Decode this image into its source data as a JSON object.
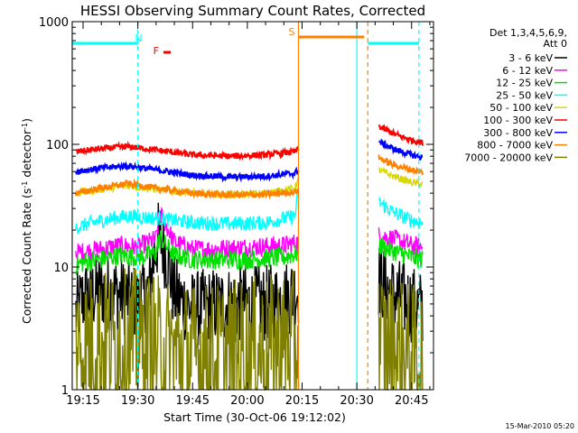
{
  "chart_data": {
    "type": "line",
    "title": "HESSI Observing Summary Count Rates, Corrected",
    "xlabel": "Start Time (30-Oct-06 19:12:02)",
    "ylabel_main": "Corrected Count Rate (s",
    "ylabel_sup1": "-1",
    "ylabel_mid": " detector",
    "ylabel_sup2": "-1",
    "ylabel_end": ")",
    "yscale": "log",
    "ylim": [
      1,
      1000
    ],
    "xlim": [
      "19:12:02",
      "20:51:00"
    ],
    "x_ticks": [
      "19:15",
      "19:30",
      "19:45",
      "20:00",
      "20:15",
      "20:30",
      "20:45"
    ],
    "y_ticks": [
      "1",
      "10",
      "100",
      "1000"
    ],
    "date_stamp": "15-Mar-2010 05:20",
    "legend": {
      "placement": "right",
      "header1": "Det 1,3,4,5,6,9,",
      "header2": "Att 0",
      "entries": [
        {
          "label": "3 - 6 keV",
          "color": "#000000"
        },
        {
          "label": "6 - 12 keV",
          "color": "#ff00ff"
        },
        {
          "label": "12 - 25 keV",
          "color": "#00e000"
        },
        {
          "label": "25 - 50 keV",
          "color": "#00ffff"
        },
        {
          "label": "50 - 100 keV",
          "color": "#d8d800"
        },
        {
          "label": "100 - 300 keV",
          "color": "#ff0000"
        },
        {
          "label": "300 - 800 keV",
          "color": "#0000ff"
        },
        {
          "label": "800 - 7000 keV",
          "color": "#ff8000"
        },
        {
          "label": "7000 - 20000 keV",
          "color": "#808000"
        }
      ]
    },
    "flags": [
      {
        "label": "N",
        "color": "#00ffff",
        "segments": [
          [
            "19:12",
            "19:30"
          ],
          [
            "20:33",
            "20:47"
          ]
        ]
      },
      {
        "label": "F",
        "color": "#ff0000",
        "segments": [
          [
            "19:37",
            "19:39"
          ]
        ]
      },
      {
        "label": "S",
        "color": "#ff8000",
        "segments": [
          [
            "20:14",
            "20:32"
          ]
        ]
      }
    ],
    "vlines": [
      {
        "time": "19:30",
        "color": "#00ffff",
        "style": "dashed"
      },
      {
        "time": "20:14",
        "color": "#ff8000",
        "style": "solid"
      },
      {
        "time": "20:30",
        "color": "#00ffff",
        "style": "solid"
      },
      {
        "time": "20:33",
        "color": "#ff8000",
        "style": "dashed"
      },
      {
        "time": "20:47",
        "color": "#00ffff",
        "style": "dashed"
      },
      {
        "time": "19:12",
        "color": "#00ffff",
        "style": "solid"
      }
    ],
    "series": [
      {
        "name": "3 - 6 keV",
        "color": "#000000",
        "jitter": 0.32,
        "segments": [
          [
            [
              "19:13",
              4.2
            ],
            [
              "19:15",
              5.5
            ],
            [
              "19:20",
              6.5
            ],
            [
              "19:25",
              6
            ],
            [
              "19:30",
              5
            ],
            [
              "19:33",
              6.5
            ],
            [
              "19:35",
              15
            ],
            [
              "19:36",
              18
            ],
            [
              "19:38",
              12
            ],
            [
              "19:40",
              6
            ],
            [
              "19:45",
              4.5
            ],
            [
              "19:50",
              4.8
            ],
            [
              "19:55",
              5
            ],
            [
              "20:00",
              5
            ],
            [
              "20:05",
              5
            ],
            [
              "20:10",
              5.5
            ],
            [
              "20:14",
              6.5
            ]
          ],
          [
            [
              "20:36",
              8
            ],
            [
              "20:40",
              6
            ],
            [
              "20:45",
              5
            ],
            [
              "20:48",
              4.5
            ]
          ]
        ]
      },
      {
        "name": "6 - 12 keV",
        "color": "#ff00ff",
        "jitter": 0.08,
        "segments": [
          [
            [
              "19:13",
              13
            ],
            [
              "19:20",
              14
            ],
            [
              "19:25",
              15
            ],
            [
              "19:30",
              14.5
            ],
            [
              "19:35",
              17
            ],
            [
              "19:36",
              28
            ],
            [
              "19:37",
              24
            ],
            [
              "19:40",
              16
            ],
            [
              "19:45",
              14
            ],
            [
              "19:50",
              14
            ],
            [
              "20:00",
              14.5
            ],
            [
              "20:10",
              15
            ],
            [
              "20:14",
              16
            ]
          ],
          [
            [
              "20:36",
              18
            ],
            [
              "20:40",
              17
            ],
            [
              "20:45",
              15
            ],
            [
              "20:48",
              14.5
            ]
          ]
        ]
      },
      {
        "name": "12 - 25 keV",
        "color": "#00e000",
        "jitter": 0.08,
        "segments": [
          [
            [
              "19:13",
              10.5
            ],
            [
              "19:20",
              11.5
            ],
            [
              "19:25",
              12.5
            ],
            [
              "19:30",
              12
            ],
            [
              "19:35",
              13
            ],
            [
              "19:36",
              18
            ],
            [
              "19:37",
              16
            ],
            [
              "19:40",
              12.5
            ],
            [
              "19:45",
              11.5
            ],
            [
              "20:00",
              11.5
            ],
            [
              "20:10",
              12
            ],
            [
              "20:14",
              13
            ]
          ],
          [
            [
              "20:36",
              15
            ],
            [
              "20:40",
              13.5
            ],
            [
              "20:45",
              12
            ],
            [
              "20:48",
              11.5
            ]
          ]
        ]
      },
      {
        "name": "25 - 50 keV",
        "color": "#00ffff",
        "jitter": 0.06,
        "segments": [
          [
            [
              "19:13",
              21
            ],
            [
              "19:20",
              24
            ],
            [
              "19:27",
              26
            ],
            [
              "19:35",
              25
            ],
            [
              "19:45",
              23
            ],
            [
              "19:55",
              22.5
            ],
            [
              "20:05",
              23
            ],
            [
              "20:13",
              26
            ],
            [
              "20:14",
              40
            ]
          ],
          [
            [
              "20:36",
              34
            ],
            [
              "20:40",
              28
            ],
            [
              "20:45",
              24
            ],
            [
              "20:48",
              23
            ]
          ]
        ]
      },
      {
        "name": "50 - 100 keV",
        "color": "#d8d800",
        "jitter": 0.03,
        "segments": [
          [
            [
              "19:13",
              40
            ],
            [
              "19:20",
              43
            ],
            [
              "19:27",
              46
            ],
            [
              "19:35",
              43
            ],
            [
              "19:45",
              40
            ],
            [
              "19:55",
              39
            ],
            [
              "20:05",
              40
            ],
            [
              "20:13",
              44
            ],
            [
              "20:14",
              52
            ]
          ],
          [
            [
              "20:36",
              62
            ],
            [
              "20:40",
              55
            ],
            [
              "20:45",
              49
            ],
            [
              "20:48",
              47
            ]
          ]
        ]
      },
      {
        "name": "100 - 300 keV",
        "color": "#ff0000",
        "jitter": 0.025,
        "segments": [
          [
            [
              "19:13",
              87
            ],
            [
              "19:20",
              92
            ],
            [
              "19:27",
              96
            ],
            [
              "19:35",
              90
            ],
            [
              "19:45",
              82
            ],
            [
              "19:55",
              80
            ],
            [
              "20:05",
              82
            ],
            [
              "20:13",
              87
            ],
            [
              "20:14",
              92
            ]
          ],
          [
            [
              "20:36",
              140
            ],
            [
              "20:40",
              122
            ],
            [
              "20:45",
              108
            ],
            [
              "20:48",
              103
            ]
          ]
        ]
      },
      {
        "name": "300 - 800 keV",
        "color": "#0000ff",
        "jitter": 0.025,
        "segments": [
          [
            [
              "19:13",
              60
            ],
            [
              "19:20",
              64
            ],
            [
              "19:27",
              67
            ],
            [
              "19:35",
              62
            ],
            [
              "19:45",
              56
            ],
            [
              "19:55",
              54
            ],
            [
              "20:05",
              55
            ],
            [
              "20:13",
              58
            ],
            [
              "20:14",
              62
            ]
          ],
          [
            [
              "20:36",
              105
            ],
            [
              "20:40",
              92
            ],
            [
              "20:45",
              82
            ],
            [
              "20:48",
              78
            ]
          ]
        ]
      },
      {
        "name": "800 - 7000 keV",
        "color": "#ff8000",
        "jitter": 0.025,
        "segments": [
          [
            [
              "19:13",
              40
            ],
            [
              "19:20",
              44
            ],
            [
              "19:27",
              48
            ],
            [
              "19:35",
              44
            ],
            [
              "19:45",
              40
            ],
            [
              "19:55",
              38.5
            ],
            [
              "20:05",
              39
            ],
            [
              "20:13",
              41
            ],
            [
              "20:14",
              42
            ]
          ],
          [
            [
              "20:36",
              78
            ],
            [
              "20:40",
              68
            ],
            [
              "20:45",
              62
            ],
            [
              "20:48",
              59
            ]
          ]
        ]
      },
      {
        "name": "7000 - 20000 keV",
        "color": "#808000",
        "jitter": 0.6,
        "segments": [
          [
            [
              "19:13",
              2.2
            ],
            [
              "19:20",
              2.4
            ],
            [
              "19:30",
              2.5
            ],
            [
              "19:40",
              2.0
            ],
            [
              "19:50",
              1.9
            ],
            [
              "20:00",
              2.1
            ],
            [
              "20:10",
              2.3
            ],
            [
              "20:14",
              2.4
            ]
          ],
          [
            [
              "20:36",
              2.5
            ],
            [
              "20:42",
              2.0
            ],
            [
              "20:48",
              1.8
            ]
          ]
        ]
      }
    ]
  }
}
